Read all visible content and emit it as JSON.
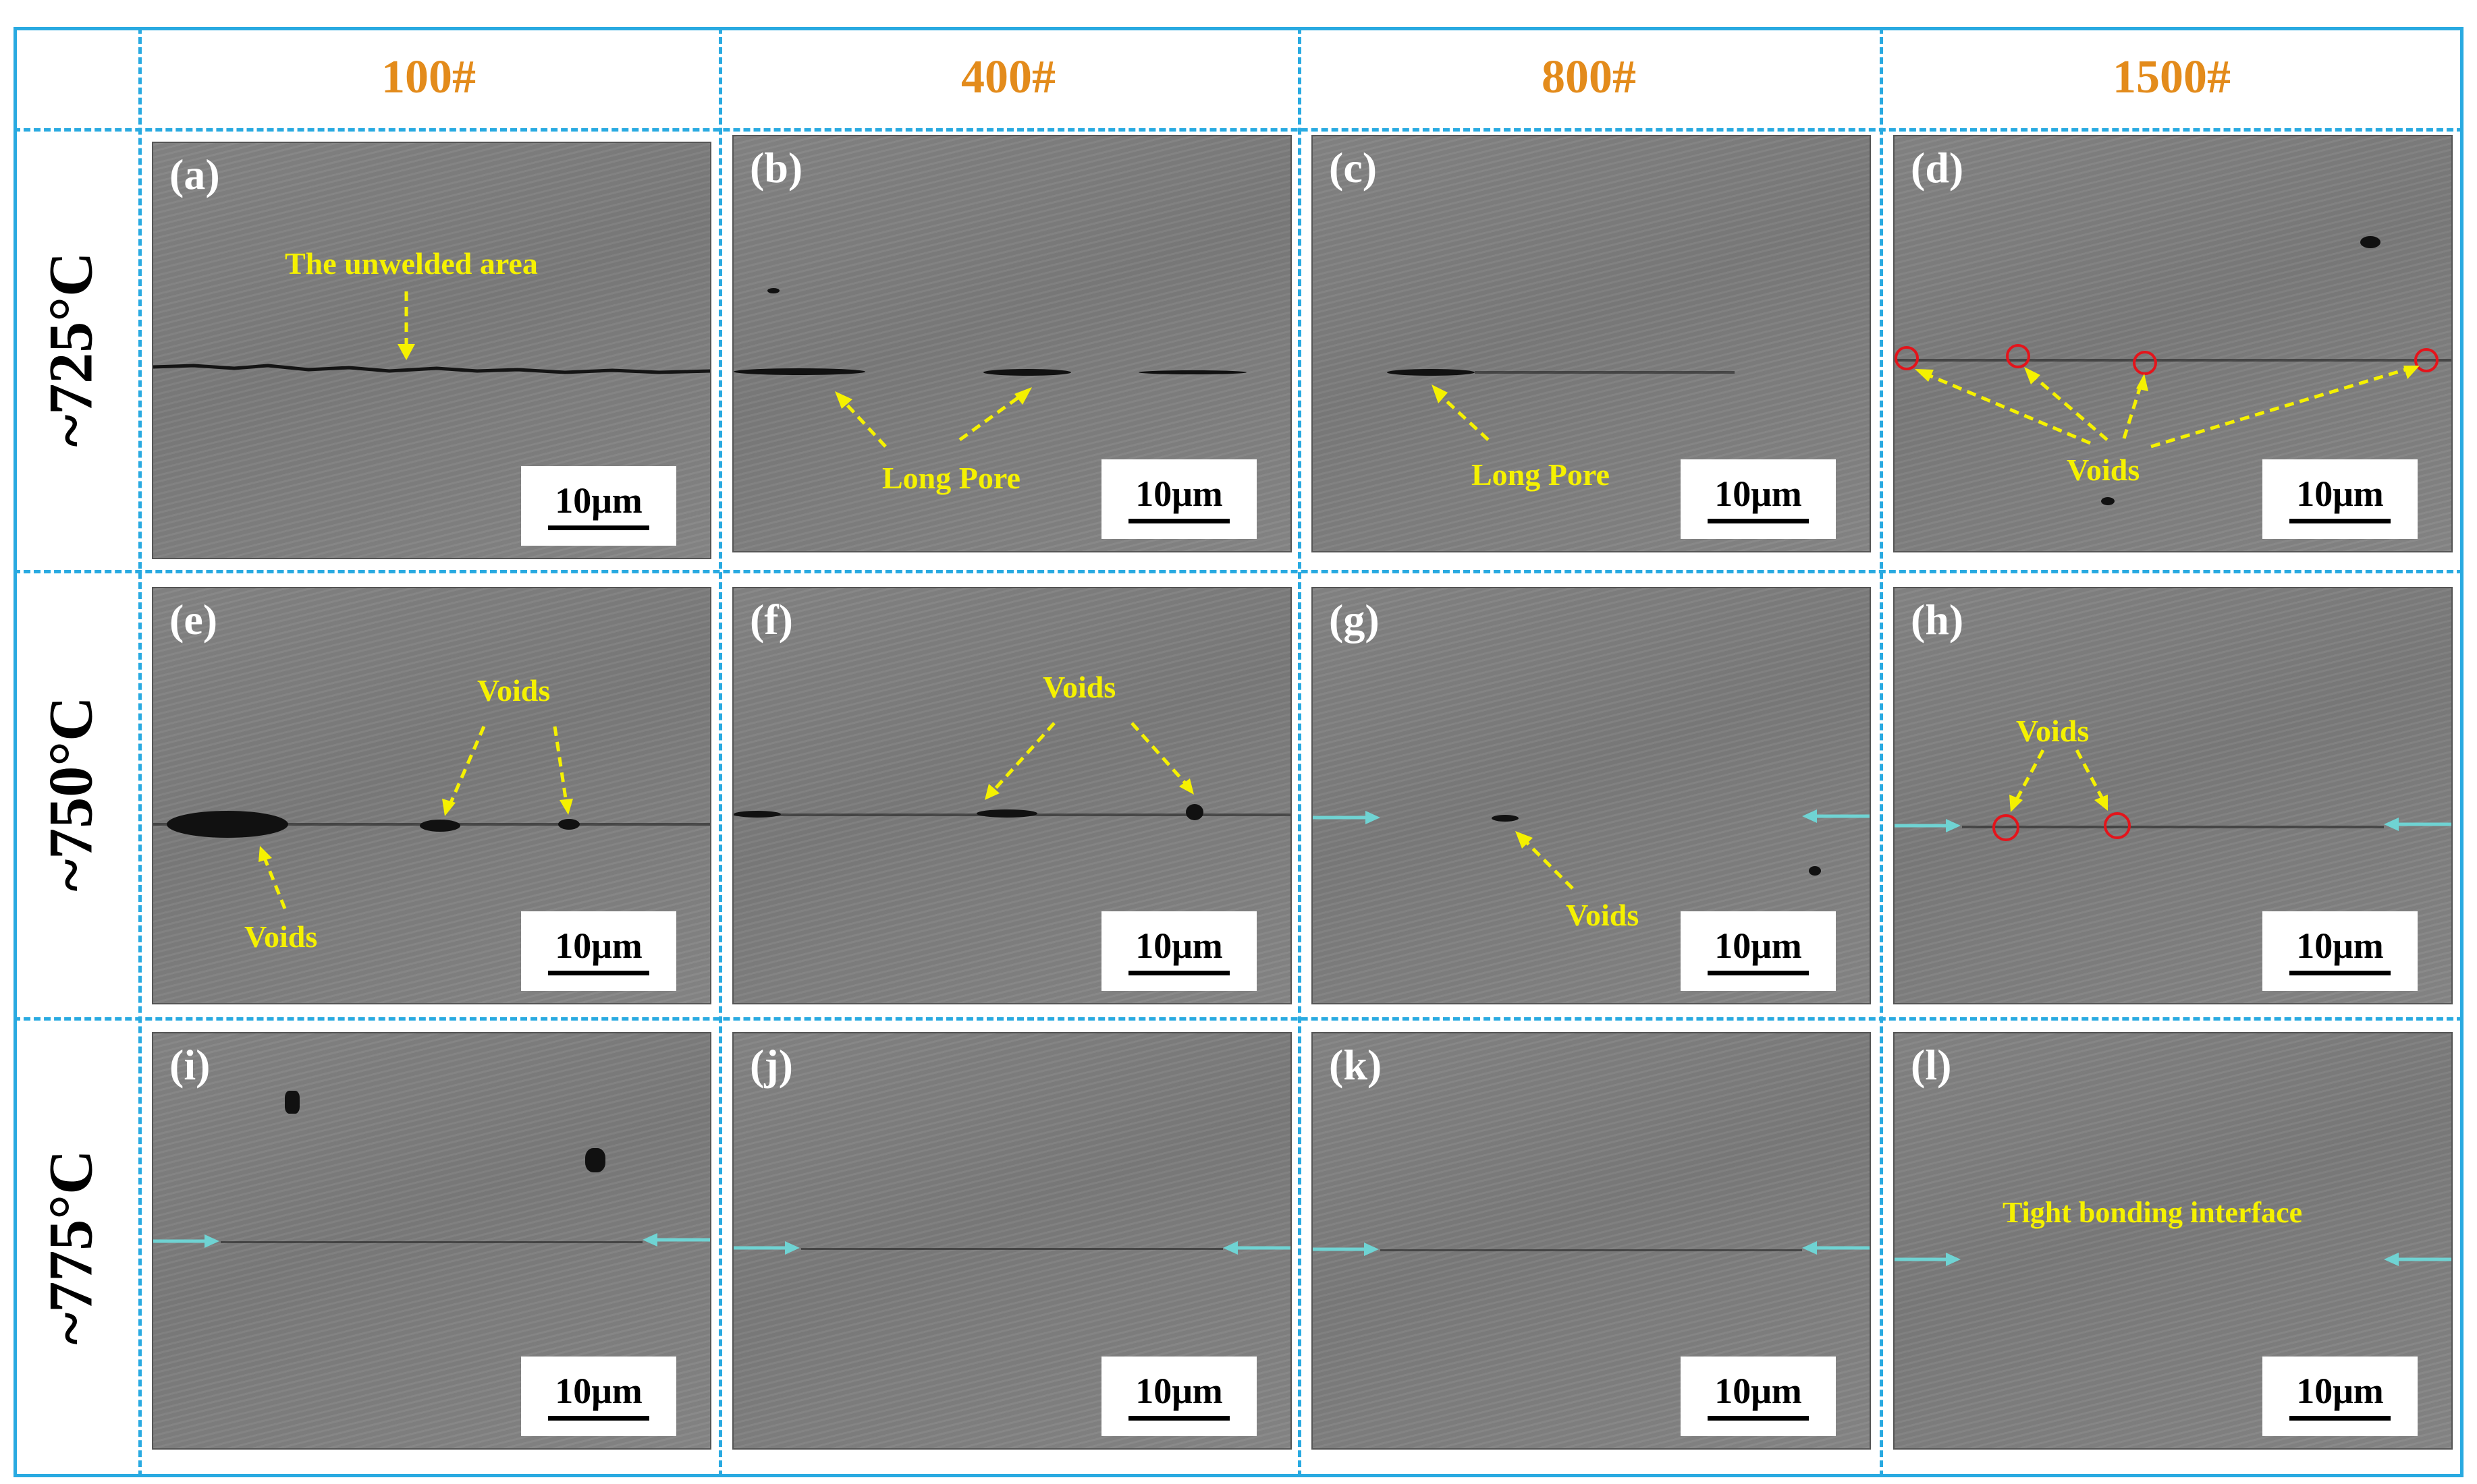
{
  "columns": [
    "100#",
    "400#",
    "800#",
    "1500#"
  ],
  "rows": [
    "~725°C",
    "~750°C",
    "~775°C"
  ],
  "panels": [
    {
      "letter": "(a)",
      "annotation": "The unwelded area"
    },
    {
      "letter": "(b)",
      "annotation": "Long Pore"
    },
    {
      "letter": "(c)",
      "annotation": "Long Pore"
    },
    {
      "letter": "(d)",
      "annotation": "Voids"
    },
    {
      "letter": "(e)",
      "annotation": "Voids",
      "annotation2": "Voids"
    },
    {
      "letter": "(f)",
      "annotation": "Voids"
    },
    {
      "letter": "(g)",
      "annotation": "Voids"
    },
    {
      "letter": "(h)",
      "annotation": "Voids"
    },
    {
      "letter": "(i)"
    },
    {
      "letter": "(j)"
    },
    {
      "letter": "(k)"
    },
    {
      "letter": "(l)",
      "annotation": "Tight bonding interface"
    }
  ],
  "scale_bar": "10μm",
  "colors": {
    "grid": "#29aae1",
    "column_header": "#e38b1b",
    "annotation": "#f5f100",
    "interface_arrow": "#6fd3d3",
    "void_circle": "#e4141b"
  }
}
